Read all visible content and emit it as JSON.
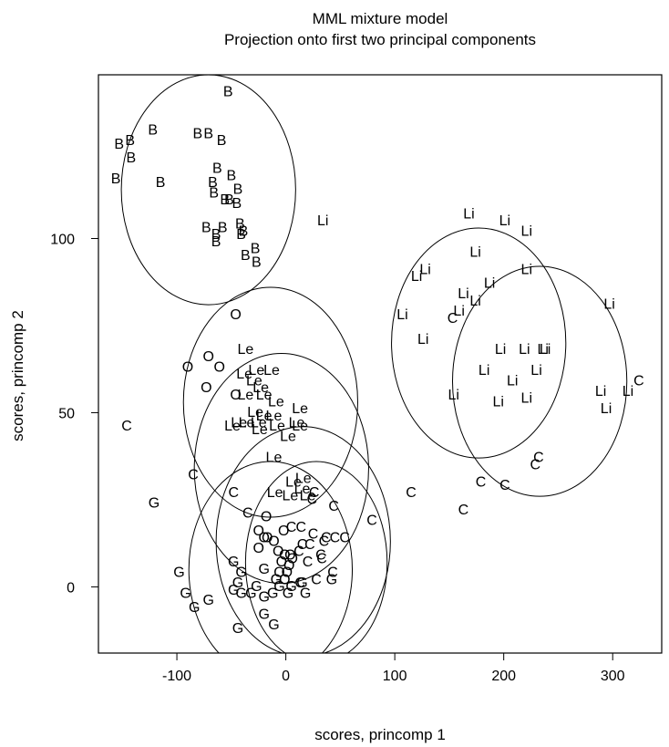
{
  "chart_data": {
    "type": "scatter",
    "title": "MML mixture model",
    "subtitle": "Projection onto first two principal components",
    "xlabel": "scores, princomp 1",
    "ylabel": "scores, princomp 2",
    "xlim": [
      -172,
      345
    ],
    "ylim": [
      -19,
      147
    ],
    "x_ticks": [
      -100,
      0,
      100,
      200,
      300
    ],
    "y_ticks": [
      0,
      50,
      100
    ],
    "grid": false,
    "legend": "none",
    "colors": {
      "points": "#000000",
      "ellipses": "#000000",
      "frame": "#000000"
    },
    "points": [
      {
        "label": "B",
        "x": -53,
        "y": 142
      },
      {
        "label": "B",
        "x": -122,
        "y": 131
      },
      {
        "label": "B",
        "x": -143,
        "y": 128
      },
      {
        "label": "B",
        "x": -153,
        "y": 127
      },
      {
        "label": "B",
        "x": -81,
        "y": 130
      },
      {
        "label": "B",
        "x": -71,
        "y": 130
      },
      {
        "label": "B",
        "x": -59,
        "y": 128
      },
      {
        "label": "B",
        "x": -142,
        "y": 123
      },
      {
        "label": "B",
        "x": -63,
        "y": 120
      },
      {
        "label": "B",
        "x": -50,
        "y": 118
      },
      {
        "label": "B",
        "x": -156,
        "y": 117
      },
      {
        "label": "B",
        "x": -115,
        "y": 116
      },
      {
        "label": "B",
        "x": -67,
        "y": 116
      },
      {
        "label": "B",
        "x": -44,
        "y": 114
      },
      {
        "label": "B",
        "x": -66,
        "y": 113
      },
      {
        "label": "B",
        "x": -56,
        "y": 111
      },
      {
        "label": "B",
        "x": -52,
        "y": 111
      },
      {
        "label": "B",
        "x": -45,
        "y": 110
      },
      {
        "label": "B",
        "x": -73,
        "y": 103
      },
      {
        "label": "B",
        "x": -58,
        "y": 103
      },
      {
        "label": "B",
        "x": -42,
        "y": 104
      },
      {
        "label": "B",
        "x": -39,
        "y": 102
      },
      {
        "label": "B",
        "x": -41,
        "y": 101
      },
      {
        "label": "B",
        "x": -64,
        "y": 101
      },
      {
        "label": "B",
        "x": -64,
        "y": 99
      },
      {
        "label": "B",
        "x": -28,
        "y": 97
      },
      {
        "label": "B",
        "x": -37,
        "y": 95
      },
      {
        "label": "B",
        "x": -27,
        "y": 93
      },
      {
        "label": "Li",
        "x": 34,
        "y": 105
      },
      {
        "label": "Li",
        "x": 168,
        "y": 107
      },
      {
        "label": "Li",
        "x": 201,
        "y": 105
      },
      {
        "label": "Li",
        "x": 221,
        "y": 102
      },
      {
        "label": "Li",
        "x": 174,
        "y": 96
      },
      {
        "label": "Li",
        "x": 128,
        "y": 91
      },
      {
        "label": "Li",
        "x": 120,
        "y": 89
      },
      {
        "label": "Li",
        "x": 221,
        "y": 91
      },
      {
        "label": "Li",
        "x": 187,
        "y": 87
      },
      {
        "label": "Li",
        "x": 163,
        "y": 84
      },
      {
        "label": "Li",
        "x": 174,
        "y": 82
      },
      {
        "label": "Li",
        "x": 159,
        "y": 79
      },
      {
        "label": "Li",
        "x": 107,
        "y": 78
      },
      {
        "label": "Li",
        "x": 297,
        "y": 81
      },
      {
        "label": "Li",
        "x": 126,
        "y": 71
      },
      {
        "label": "Li",
        "x": 197,
        "y": 68
      },
      {
        "label": "Li",
        "x": 219,
        "y": 68
      },
      {
        "label": "Li",
        "x": 236,
        "y": 68
      },
      {
        "label": "Li",
        "x": 238,
        "y": 68
      },
      {
        "label": "Li",
        "x": 182,
        "y": 62
      },
      {
        "label": "Li",
        "x": 230,
        "y": 62
      },
      {
        "label": "Li",
        "x": 208,
        "y": 59
      },
      {
        "label": "Li",
        "x": 154,
        "y": 55
      },
      {
        "label": "Li",
        "x": 195,
        "y": 53
      },
      {
        "label": "Li",
        "x": 221,
        "y": 54
      },
      {
        "label": "Li",
        "x": 289,
        "y": 56
      },
      {
        "label": "Li",
        "x": 314,
        "y": 56
      },
      {
        "label": "Li",
        "x": 294,
        "y": 51
      },
      {
        "label": "C",
        "x": 153,
        "y": 77
      },
      {
        "label": "C",
        "x": 324,
        "y": 59
      },
      {
        "label": "C",
        "x": -146,
        "y": 46
      },
      {
        "label": "C",
        "x": -85,
        "y": 32
      },
      {
        "label": "C",
        "x": 179,
        "y": 30
      },
      {
        "label": "C",
        "x": 201,
        "y": 29
      },
      {
        "label": "C",
        "x": 232,
        "y": 37
      },
      {
        "label": "C",
        "x": 229,
        "y": 35
      },
      {
        "label": "C",
        "x": 115,
        "y": 27
      },
      {
        "label": "C",
        "x": 163,
        "y": 22
      },
      {
        "label": "C",
        "x": -48,
        "y": 27
      },
      {
        "label": "C",
        "x": -35,
        "y": 21
      },
      {
        "label": "C",
        "x": 44,
        "y": 23
      },
      {
        "label": "C",
        "x": 79,
        "y": 19
      },
      {
        "label": "C",
        "x": 14,
        "y": 17
      },
      {
        "label": "C",
        "x": 5,
        "y": 17
      },
      {
        "label": "C",
        "x": 25,
        "y": 15
      },
      {
        "label": "C",
        "x": 37,
        "y": 14
      },
      {
        "label": "C",
        "x": 45,
        "y": 14
      },
      {
        "label": "C",
        "x": 54,
        "y": 14
      },
      {
        "label": "C",
        "x": 35,
        "y": 13
      },
      {
        "label": "C",
        "x": 22,
        "y": 12
      },
      {
        "label": "C",
        "x": 15,
        "y": 12
      },
      {
        "label": "C",
        "x": 12,
        "y": 10
      },
      {
        "label": "C",
        "x": 32,
        "y": 9
      },
      {
        "label": "C",
        "x": 33,
        "y": 8
      },
      {
        "label": "C",
        "x": 20,
        "y": 7
      },
      {
        "label": "C",
        "x": 43,
        "y": 4
      },
      {
        "label": "C",
        "x": 28,
        "y": 2
      },
      {
        "label": "C",
        "x": 13,
        "y": 1
      },
      {
        "label": "C",
        "x": 26,
        "y": 27
      },
      {
        "label": "C",
        "x": 24,
        "y": 25
      },
      {
        "label": "O",
        "x": -46,
        "y": 78
      },
      {
        "label": "O",
        "x": -71,
        "y": 66
      },
      {
        "label": "O",
        "x": -61,
        "y": 63
      },
      {
        "label": "O",
        "x": -90,
        "y": 63
      },
      {
        "label": "O",
        "x": -73,
        "y": 57
      },
      {
        "label": "O",
        "x": -46,
        "y": 55
      },
      {
        "label": "O",
        "x": -18,
        "y": 20
      },
      {
        "label": "O",
        "x": -25,
        "y": 16
      },
      {
        "label": "O",
        "x": -20,
        "y": 14
      },
      {
        "label": "O",
        "x": -17,
        "y": 14
      },
      {
        "label": "O",
        "x": -11,
        "y": 13
      },
      {
        "label": "O",
        "x": -2,
        "y": 16
      },
      {
        "label": "O",
        "x": -25,
        "y": 11
      },
      {
        "label": "O",
        "x": -7,
        "y": 10
      },
      {
        "label": "O",
        "x": -1,
        "y": 9
      },
      {
        "label": "O",
        "x": 4,
        "y": 9
      },
      {
        "label": "O",
        "x": -4,
        "y": 7
      },
      {
        "label": "O",
        "x": 3,
        "y": 6
      },
      {
        "label": "O",
        "x": 6,
        "y": 8
      },
      {
        "label": "O",
        "x": -6,
        "y": 4
      },
      {
        "label": "O",
        "x": 1,
        "y": 4
      },
      {
        "label": "O",
        "x": -1,
        "y": 2
      },
      {
        "label": "Le",
        "x": -37,
        "y": 68
      },
      {
        "label": "Le",
        "x": -27,
        "y": 62
      },
      {
        "label": "Le",
        "x": -13,
        "y": 62
      },
      {
        "label": "Le",
        "x": -38,
        "y": 61
      },
      {
        "label": "Le",
        "x": -29,
        "y": 59
      },
      {
        "label": "Le",
        "x": -23,
        "y": 57
      },
      {
        "label": "Le",
        "x": -37,
        "y": 55
      },
      {
        "label": "Le",
        "x": -20,
        "y": 55
      },
      {
        "label": "Le",
        "x": -9,
        "y": 53
      },
      {
        "label": "Le",
        "x": 13,
        "y": 51
      },
      {
        "label": "Le",
        "x": -28,
        "y": 50
      },
      {
        "label": "Le",
        "x": -20,
        "y": 49
      },
      {
        "label": "Le",
        "x": -11,
        "y": 49
      },
      {
        "label": "Le",
        "x": -36,
        "y": 47
      },
      {
        "label": "Le",
        "x": -49,
        "y": 46
      },
      {
        "label": "Le",
        "x": -43,
        "y": 47
      },
      {
        "label": "Le",
        "x": -25,
        "y": 47
      },
      {
        "label": "Le",
        "x": -8,
        "y": 46
      },
      {
        "label": "Le",
        "x": 10,
        "y": 47
      },
      {
        "label": "Le",
        "x": 13,
        "y": 46
      },
      {
        "label": "Le",
        "x": -24,
        "y": 45
      },
      {
        "label": "Le",
        "x": 2,
        "y": 43
      },
      {
        "label": "Le",
        "x": -11,
        "y": 37
      },
      {
        "label": "Le",
        "x": 16,
        "y": 31
      },
      {
        "label": "Le",
        "x": 7,
        "y": 30
      },
      {
        "label": "Le",
        "x": 15,
        "y": 28
      },
      {
        "label": "Le",
        "x": -10,
        "y": 27
      },
      {
        "label": "Le",
        "x": 4,
        "y": 26
      },
      {
        "label": "Le",
        "x": 20,
        "y": 26
      },
      {
        "label": "G",
        "x": -121,
        "y": 24
      },
      {
        "label": "G",
        "x": -98,
        "y": 4
      },
      {
        "label": "G",
        "x": -92,
        "y": -2
      },
      {
        "label": "G",
        "x": -84,
        "y": -6
      },
      {
        "label": "G",
        "x": -71,
        "y": -4
      },
      {
        "label": "G",
        "x": -48,
        "y": 7
      },
      {
        "label": "G",
        "x": -41,
        "y": 4
      },
      {
        "label": "G",
        "x": -44,
        "y": 1
      },
      {
        "label": "G",
        "x": -48,
        "y": -1
      },
      {
        "label": "G",
        "x": -41,
        "y": -2
      },
      {
        "label": "G",
        "x": -27,
        "y": 0
      },
      {
        "label": "G",
        "x": -32,
        "y": -2
      },
      {
        "label": "G",
        "x": -12,
        "y": -2
      },
      {
        "label": "G",
        "x": -20,
        "y": -3
      },
      {
        "label": "G",
        "x": -20,
        "y": 5
      },
      {
        "label": "G",
        "x": -6,
        "y": 0
      },
      {
        "label": "G",
        "x": -9,
        "y": 2
      },
      {
        "label": "G",
        "x": 2,
        "y": -2
      },
      {
        "label": "G",
        "x": 5,
        "y": 0
      },
      {
        "label": "G",
        "x": 15,
        "y": 1
      },
      {
        "label": "G",
        "x": 18,
        "y": -2
      },
      {
        "label": "G",
        "x": 42,
        "y": 2
      },
      {
        "label": "G",
        "x": -44,
        "y": -12
      },
      {
        "label": "G",
        "x": -20,
        "y": -8
      },
      {
        "label": "G",
        "x": -11,
        "y": -11
      }
    ],
    "ellipses": [
      {
        "cx": -71,
        "cy": 114,
        "rx": 80,
        "ry": 33
      },
      {
        "cx": 177,
        "cy": 70,
        "rx": 80,
        "ry": 33
      },
      {
        "cx": 233,
        "cy": 59,
        "rx": 80,
        "ry": 33
      },
      {
        "cx": -14,
        "cy": 53,
        "rx": 80,
        "ry": 33
      },
      {
        "cx": -4,
        "cy": 34,
        "rx": 80,
        "ry": 33
      },
      {
        "cx": 16,
        "cy": 13,
        "rx": 80,
        "ry": 33
      },
      {
        "cx": -14,
        "cy": 5,
        "rx": 75,
        "ry": 31
      },
      {
        "cx": 28,
        "cy": 7,
        "rx": 65,
        "ry": 29
      }
    ]
  }
}
